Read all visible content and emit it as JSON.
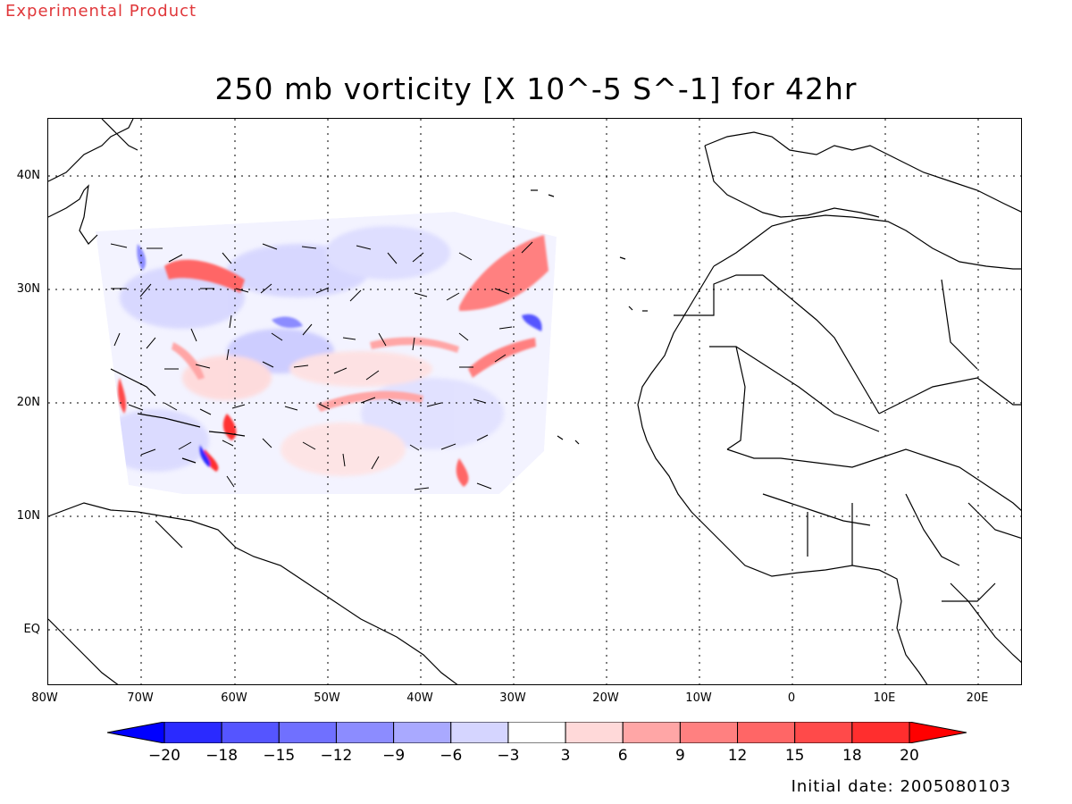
{
  "header": {
    "banner": "Experimental Product",
    "title": "250 mb vorticity [X 10^-5 S^-1] for 42hr"
  },
  "axes": {
    "lat_labels": [
      "40N",
      "30N",
      "20N",
      "10N",
      "EQ"
    ],
    "lon_labels": [
      "80W",
      "70W",
      "60W",
      "50W",
      "40W",
      "30W",
      "20W",
      "10W",
      "0",
      "10E",
      "20E"
    ]
  },
  "colorbar": {
    "labels": [
      "-20",
      "-18",
      "-15",
      "-12",
      "-9",
      "-6",
      "-3",
      "3",
      "6",
      "9",
      "12",
      "15",
      "18",
      "20"
    ],
    "colors": [
      "#0000ff",
      "#2a2aff",
      "#5555ff",
      "#7070ff",
      "#8c8cff",
      "#a9a9ff",
      "#d5d5ff",
      "#ffffff",
      "#ffd9d9",
      "#ffa6a6",
      "#ff8080",
      "#ff6666",
      "#ff4a4a",
      "#ff2e2e",
      "#ff0000"
    ]
  },
  "footer": {
    "initial_date": "Initial date: 2005080103"
  }
}
